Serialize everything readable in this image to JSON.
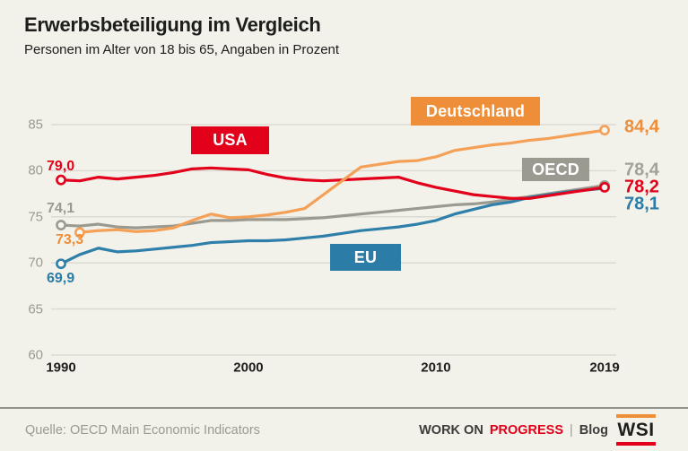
{
  "header": {
    "title": "Erwerbsbeteiligung im Vergleich",
    "subtitle": "Personen im Alter von 18 bis 65, Angaben in Prozent"
  },
  "chart_data": {
    "type": "line",
    "title": "Erwerbsbeteiligung im Vergleich",
    "subtitle": "Personen im Alter von 18 bis 65, Angaben in Prozent",
    "xlabel": "",
    "ylabel": "Prozent",
    "x": [
      1990,
      1991,
      1992,
      1993,
      1994,
      1995,
      1996,
      1997,
      1998,
      1999,
      2000,
      2001,
      2002,
      2003,
      2004,
      2005,
      2006,
      2007,
      2008,
      2009,
      2010,
      2011,
      2012,
      2013,
      2014,
      2015,
      2016,
      2017,
      2018,
      2019
    ],
    "xticks": [
      1990,
      2000,
      2010,
      2019
    ],
    "yticks": [
      60,
      65,
      70,
      75,
      80,
      85
    ],
    "ylim": [
      60,
      87.5
    ],
    "grid": true,
    "legend_position": "inline-boxes-on-plot",
    "series": [
      {
        "name": "Deutschland",
        "box_color": "#EE8E38",
        "line_color": "#F4A056",
        "start_label": "73,3",
        "end_label": "84,4",
        "values": [
          null,
          73.3,
          73.5,
          73.6,
          73.4,
          73.5,
          73.8,
          74.6,
          75.3,
          74.9,
          75.0,
          75.2,
          75.5,
          75.9,
          77.4,
          78.9,
          80.4,
          80.7,
          81.0,
          81.1,
          81.5,
          82.2,
          82.5,
          82.8,
          83.0,
          83.3,
          83.5,
          83.8,
          84.1,
          84.4
        ]
      },
      {
        "name": "USA",
        "box_color": "#E2001A",
        "line_color": "#E2001A",
        "start_label": "79,0",
        "end_label": "78,2",
        "values": [
          79.0,
          78.9,
          79.3,
          79.1,
          79.3,
          79.5,
          79.8,
          80.2,
          80.3,
          80.2,
          80.1,
          79.6,
          79.2,
          79.0,
          78.9,
          79.0,
          79.1,
          79.2,
          79.3,
          78.7,
          78.2,
          77.8,
          77.4,
          77.2,
          77.0,
          77.0,
          77.3,
          77.6,
          77.9,
          78.2
        ]
      },
      {
        "name": "OECD",
        "box_color": "#9B9A90",
        "line_color": "#9B9A90",
        "start_label": "74,1",
        "end_label": "78,4",
        "values": [
          74.1,
          74.0,
          74.2,
          73.9,
          73.8,
          73.9,
          74.0,
          74.3,
          74.6,
          74.6,
          74.7,
          74.7,
          74.7,
          74.8,
          74.9,
          75.1,
          75.3,
          75.5,
          75.7,
          75.9,
          76.1,
          76.3,
          76.4,
          76.6,
          76.9,
          77.2,
          77.5,
          77.8,
          78.1,
          78.4
        ]
      },
      {
        "name": "EU",
        "box_color": "#2B7CA6",
        "line_color": "#2E80AA",
        "start_label": "69,9",
        "end_label": "78,1",
        "values": [
          69.9,
          70.9,
          71.6,
          71.2,
          71.3,
          71.5,
          71.7,
          71.9,
          72.2,
          72.3,
          72.4,
          72.4,
          72.5,
          72.7,
          72.9,
          73.2,
          73.5,
          73.7,
          73.9,
          74.2,
          74.6,
          75.3,
          75.8,
          76.3,
          76.6,
          77.1,
          77.4,
          77.7,
          77.9,
          78.1
        ]
      }
    ]
  },
  "footer": {
    "source": "Quelle: OECD Main Economic Indicators",
    "brand_left": "WORK ON",
    "brand_accent": "PROGRESS",
    "separator": "|",
    "brand_right": "Blog",
    "logo": "WSI"
  },
  "colors": {
    "background": "#F2F1EA",
    "grid": "#DCDBD3",
    "axis_text": "#9B9A91",
    "text": "#1D1D1B",
    "red": "#E2001A",
    "orange": "#EE8E38",
    "gray": "#9B9A90",
    "blue": "#2B7CA6"
  }
}
